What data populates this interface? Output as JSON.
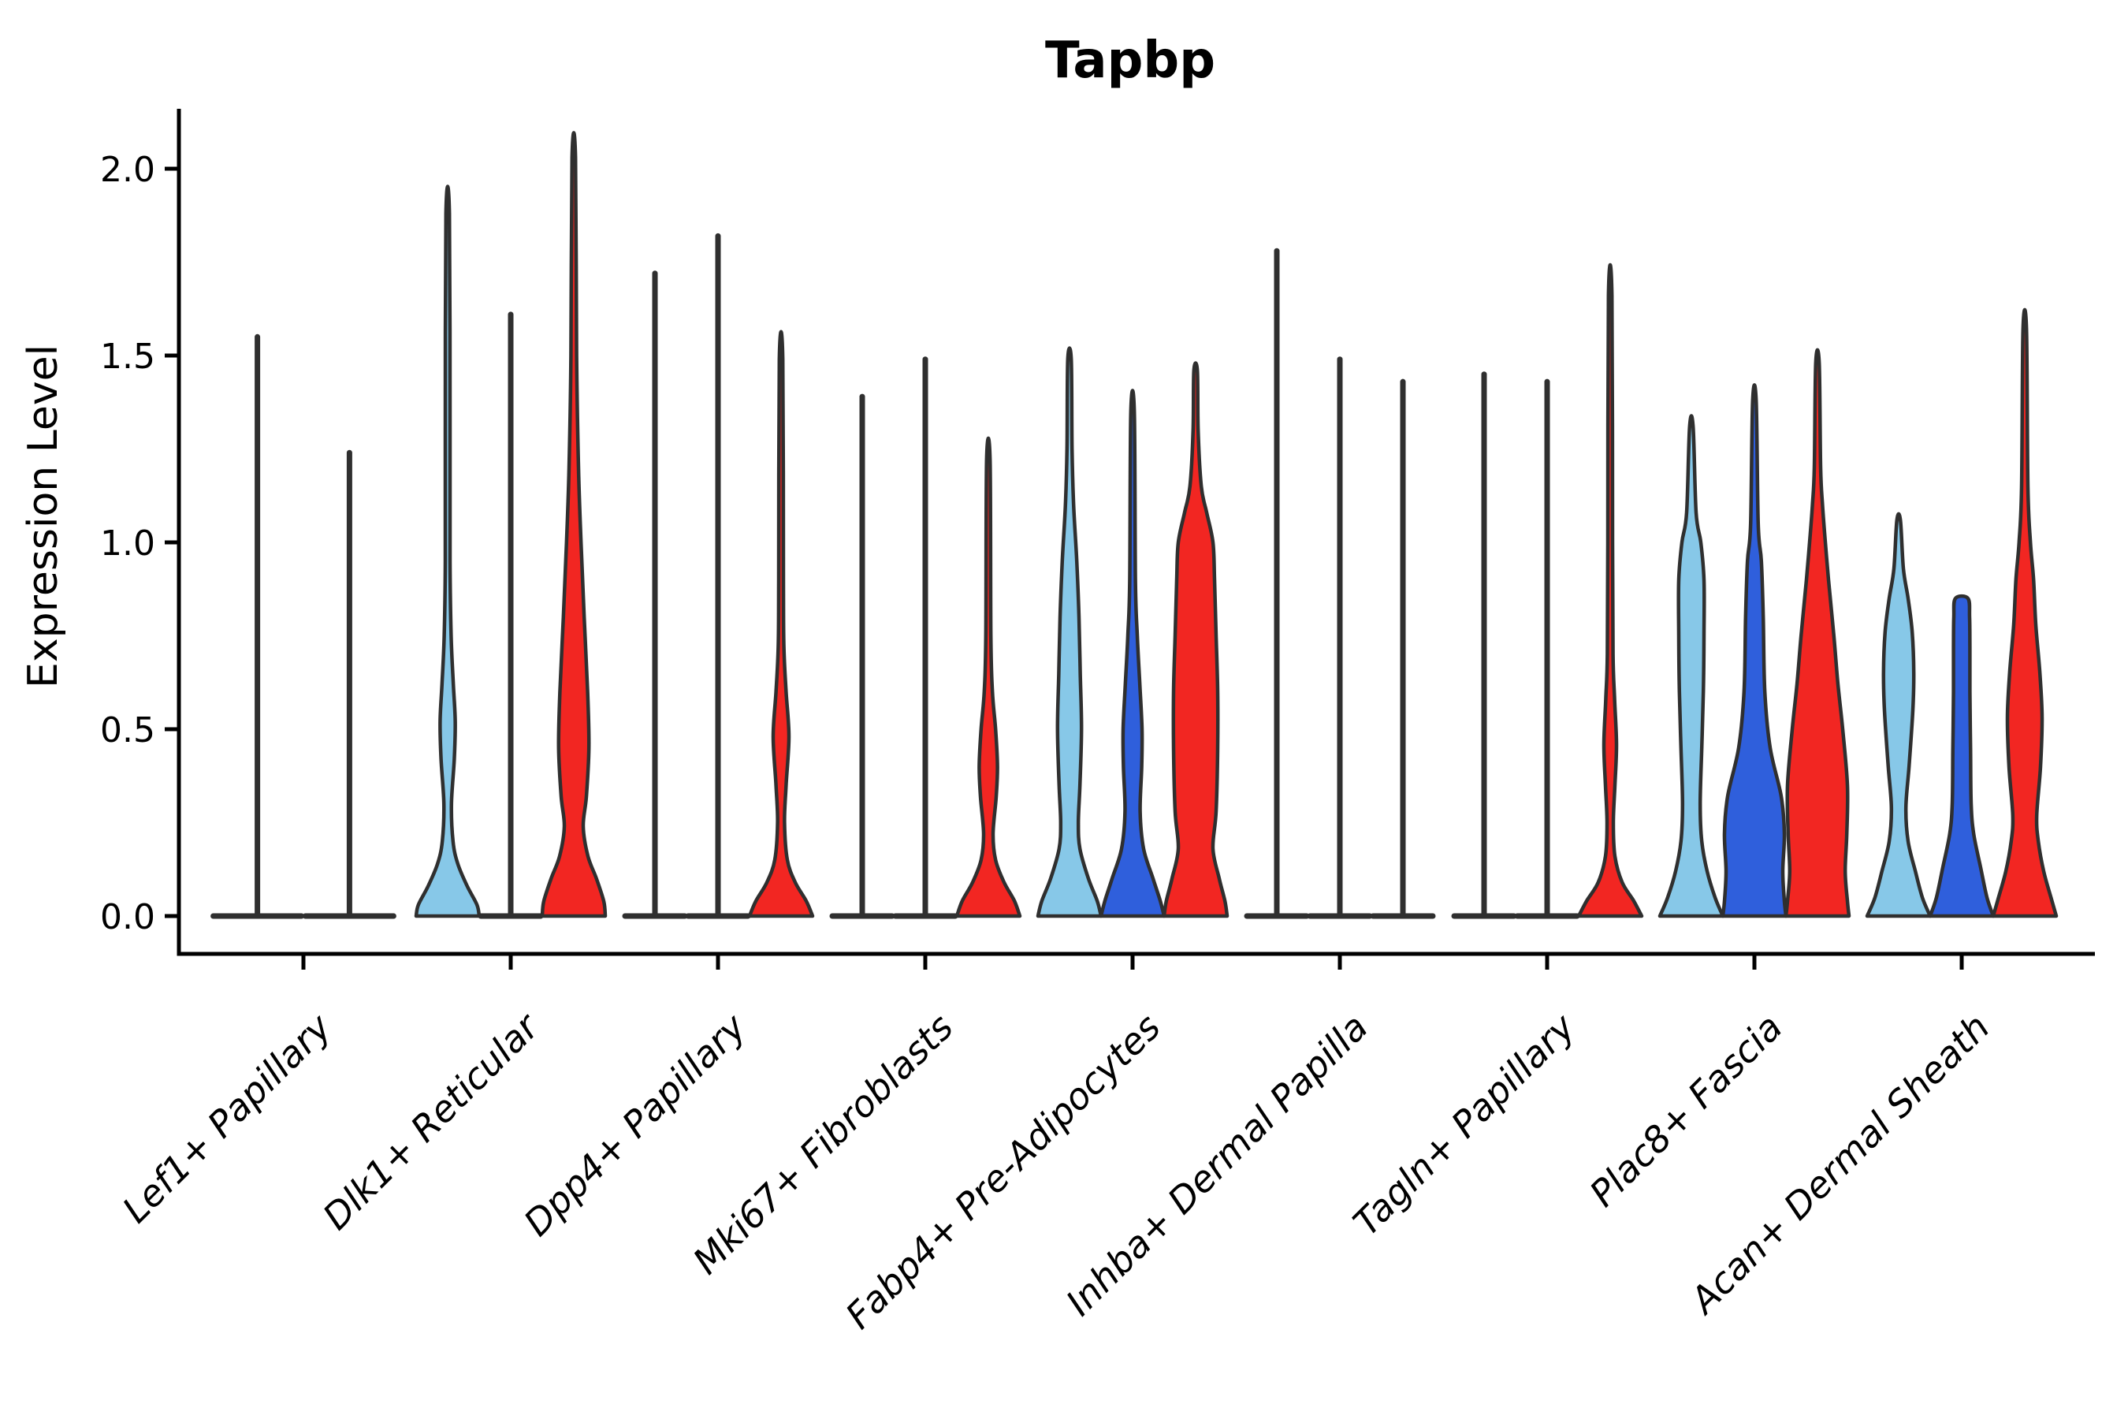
{
  "title": "Tapbp",
  "ylabel": "Expression Level",
  "chart_data": {
    "type": "violin",
    "title": "Tapbp",
    "xlabel": "",
    "ylabel": "Expression Level",
    "ylim": [
      0,
      2.05
    ],
    "ytick_values": [
      0.0,
      0.5,
      1.0,
      1.5,
      2.0
    ],
    "ytick_labels": [
      "0.0",
      "0.5",
      "1.0",
      "1.5",
      "2.0"
    ],
    "grid": false,
    "legend_position": "none",
    "palette": {
      "lightblue": "#87C8E8",
      "blue": "#2F5FDC",
      "red": "#F22622",
      "outline": "#2F2F2F",
      "axis": "#000000"
    },
    "categories": [
      "Lef1+ Papillary",
      "Dlk1+ Reticular",
      "Dpp4+ Papillary",
      "Mki67+ Fibroblasts",
      "Fabp4+ Pre-Adipocytes",
      "Inhba+ Dermal Papilla",
      "Tagln+ Papillary",
      "Plac8+ Fascia",
      "Acan+ Dermal Sheath"
    ],
    "groups": [
      {
        "category": "Lef1+ Papillary",
        "violins": [
          {
            "condition": "lightblue",
            "offset": -0.73,
            "base_halfwidth": 1.45,
            "max": 1.55,
            "profile": null
          },
          {
            "condition": "red",
            "offset": 0.73,
            "base_halfwidth": 1.45,
            "max": 1.24,
            "profile": null
          }
        ]
      },
      {
        "category": "Dlk1+ Reticular",
        "violins": [
          {
            "condition": "lightblue",
            "offset": -1,
            "base_halfwidth": 1,
            "max": 1.88,
            "profile": [
              [
                0,
                1
              ],
              [
                0.03,
                0.93
              ],
              [
                0.08,
                0.62
              ],
              [
                0.14,
                0.32
              ],
              [
                0.2,
                0.17
              ],
              [
                0.3,
                0.12
              ],
              [
                0.42,
                0.21
              ],
              [
                0.52,
                0.24
              ],
              [
                0.62,
                0.18
              ],
              [
                0.75,
                0.11
              ],
              [
                0.95,
                0.075
              ],
              [
                1.3,
                0.075
              ],
              [
                1.88,
                0.055
              ]
            ]
          },
          {
            "condition": "blue",
            "offset": 0,
            "base_halfwidth": 1,
            "max": 1.61,
            "profile": null
          },
          {
            "condition": "red",
            "offset": 1,
            "base_halfwidth": 1,
            "max": 2.03,
            "profile": [
              [
                0,
                1
              ],
              [
                0.04,
                0.95
              ],
              [
                0.1,
                0.72
              ],
              [
                0.16,
                0.45
              ],
              [
                0.24,
                0.3
              ],
              [
                0.32,
                0.4
              ],
              [
                0.45,
                0.48
              ],
              [
                0.6,
                0.44
              ],
              [
                0.8,
                0.33
              ],
              [
                1.0,
                0.23
              ],
              [
                1.2,
                0.15
              ],
              [
                1.5,
                0.09
              ],
              [
                2.03,
                0.055
              ]
            ]
          }
        ]
      },
      {
        "category": "Dpp4+ Papillary",
        "violins": [
          {
            "condition": "lightblue",
            "offset": -1,
            "base_halfwidth": 1,
            "max": 1.72,
            "profile": null
          },
          {
            "condition": "blue",
            "offset": 0,
            "base_halfwidth": 1,
            "max": 1.82,
            "profile": null
          },
          {
            "condition": "red",
            "offset": 1,
            "base_halfwidth": 1,
            "max": 1.49,
            "profile": [
              [
                0,
                1
              ],
              [
                0.04,
                0.8
              ],
              [
                0.09,
                0.45
              ],
              [
                0.15,
                0.2
              ],
              [
                0.25,
                0.11
              ],
              [
                0.35,
                0.16
              ],
              [
                0.48,
                0.25
              ],
              [
                0.6,
                0.16
              ],
              [
                0.72,
                0.09
              ],
              [
                0.9,
                0.075
              ],
              [
                1.49,
                0.055
              ]
            ]
          }
        ]
      },
      {
        "category": "Mki67+ Fibroblasts",
        "violins": [
          {
            "condition": "lightblue",
            "offset": -1,
            "base_halfwidth": 1,
            "max": 1.39,
            "profile": null
          },
          {
            "condition": "blue",
            "offset": 0,
            "base_halfwidth": 1,
            "max": 1.49,
            "profile": null
          },
          {
            "condition": "red",
            "offset": 1,
            "base_halfwidth": 1,
            "max": 1.22,
            "profile": [
              [
                0,
                1
              ],
              [
                0.04,
                0.83
              ],
              [
                0.09,
                0.5
              ],
              [
                0.15,
                0.23
              ],
              [
                0.22,
                0.15
              ],
              [
                0.32,
                0.25
              ],
              [
                0.4,
                0.29
              ],
              [
                0.5,
                0.23
              ],
              [
                0.6,
                0.13
              ],
              [
                0.75,
                0.08
              ],
              [
                1.22,
                0.055
              ]
            ]
          }
        ]
      },
      {
        "category": "Fabp4+ Pre-Adipocytes",
        "violins": [
          {
            "condition": "lightblue",
            "offset": -1,
            "base_halfwidth": 1,
            "max": 1.49,
            "profile": [
              [
                0,
                1
              ],
              [
                0.04,
                0.88
              ],
              [
                0.1,
                0.6
              ],
              [
                0.18,
                0.33
              ],
              [
                0.25,
                0.28
              ],
              [
                0.35,
                0.33
              ],
              [
                0.5,
                0.38
              ],
              [
                0.65,
                0.34
              ],
              [
                0.8,
                0.3
              ],
              [
                0.95,
                0.23
              ],
              [
                1.1,
                0.13
              ],
              [
                1.25,
                0.08
              ],
              [
                1.49,
                0.055
              ]
            ]
          },
          {
            "condition": "blue",
            "offset": 0,
            "base_halfwidth": 1,
            "max": 1.35,
            "profile": [
              [
                0,
                1
              ],
              [
                0.04,
                0.88
              ],
              [
                0.1,
                0.65
              ],
              [
                0.18,
                0.35
              ],
              [
                0.28,
                0.24
              ],
              [
                0.4,
                0.29
              ],
              [
                0.5,
                0.3
              ],
              [
                0.62,
                0.23
              ],
              [
                0.75,
                0.15
              ],
              [
                0.9,
                0.09
              ],
              [
                1.35,
                0.055
              ]
            ]
          },
          {
            "condition": "red",
            "offset": 1,
            "base_halfwidth": 1,
            "max": 1.46,
            "profile": [
              [
                0,
                1
              ],
              [
                0.04,
                0.93
              ],
              [
                0.1,
                0.75
              ],
              [
                0.18,
                0.55
              ],
              [
                0.28,
                0.65
              ],
              [
                0.45,
                0.7
              ],
              [
                0.6,
                0.7
              ],
              [
                0.75,
                0.65
              ],
              [
                0.9,
                0.6
              ],
              [
                1.0,
                0.55
              ],
              [
                1.08,
                0.35
              ],
              [
                1.15,
                0.18
              ],
              [
                1.3,
                0.08
              ],
              [
                1.46,
                0.055
              ]
            ]
          }
        ]
      },
      {
        "category": "Inhba+ Dermal Papilla",
        "violins": [
          {
            "condition": "lightblue",
            "offset": -1,
            "base_halfwidth": 1,
            "max": 1.78,
            "profile": null
          },
          {
            "condition": "blue",
            "offset": 0,
            "base_halfwidth": 1,
            "max": 1.49,
            "profile": null
          },
          {
            "condition": "red",
            "offset": 1,
            "base_halfwidth": 1,
            "max": 1.43,
            "profile": null
          }
        ]
      },
      {
        "category": "Tagln+ Papillary",
        "violins": [
          {
            "condition": "lightblue",
            "offset": -1,
            "base_halfwidth": 1,
            "max": 1.45,
            "profile": null
          },
          {
            "condition": "blue",
            "offset": 0,
            "base_halfwidth": 1,
            "max": 1.43,
            "profile": null
          },
          {
            "condition": "red",
            "offset": 1,
            "base_halfwidth": 1,
            "max": 1.66,
            "profile": [
              [
                0,
                1
              ],
              [
                0.04,
                0.75
              ],
              [
                0.09,
                0.38
              ],
              [
                0.16,
                0.15
              ],
              [
                0.25,
                0.1
              ],
              [
                0.35,
                0.15
              ],
              [
                0.46,
                0.2
              ],
              [
                0.58,
                0.14
              ],
              [
                0.7,
                0.09
              ],
              [
                1.0,
                0.075
              ],
              [
                1.66,
                0.055
              ]
            ]
          }
        ]
      },
      {
        "category": "Plac8+ Fascia",
        "violins": [
          {
            "condition": "lightblue",
            "offset": -1,
            "base_halfwidth": 1,
            "max": 1.31,
            "profile": [
              [
                0,
                1
              ],
              [
                0.05,
                0.75
              ],
              [
                0.12,
                0.5
              ],
              [
                0.2,
                0.33
              ],
              [
                0.3,
                0.28
              ],
              [
                0.45,
                0.33
              ],
              [
                0.6,
                0.38
              ],
              [
                0.75,
                0.4
              ],
              [
                0.9,
                0.4
              ],
              [
                1.0,
                0.3
              ],
              [
                1.08,
                0.15
              ],
              [
                1.31,
                0.055
              ]
            ]
          },
          {
            "condition": "blue",
            "offset": 0,
            "base_halfwidth": 1,
            "max": 1.38,
            "profile": [
              [
                0,
                1
              ],
              [
                0.04,
                0.95
              ],
              [
                0.12,
                0.9
              ],
              [
                0.22,
                0.95
              ],
              [
                0.32,
                0.85
              ],
              [
                0.45,
                0.5
              ],
              [
                0.6,
                0.33
              ],
              [
                0.8,
                0.28
              ],
              [
                0.95,
                0.22
              ],
              [
                1.05,
                0.12
              ],
              [
                1.38,
                0.055
              ]
            ]
          },
          {
            "condition": "red",
            "offset": 1,
            "base_halfwidth": 1,
            "max": 1.48,
            "profile": [
              [
                0,
                1
              ],
              [
                0.04,
                0.95
              ],
              [
                0.12,
                0.88
              ],
              [
                0.22,
                0.93
              ],
              [
                0.35,
                0.95
              ],
              [
                0.5,
                0.8
              ],
              [
                0.62,
                0.65
              ],
              [
                0.75,
                0.52
              ],
              [
                0.9,
                0.35
              ],
              [
                1.0,
                0.25
              ],
              [
                1.1,
                0.16
              ],
              [
                1.2,
                0.1
              ],
              [
                1.48,
                0.055
              ]
            ]
          }
        ]
      },
      {
        "category": "Acan+ Dermal Sheath",
        "violins": [
          {
            "condition": "lightblue",
            "offset": -1,
            "base_halfwidth": 1,
            "max": 1.06,
            "profile": [
              [
                0,
                1
              ],
              [
                0.05,
                0.75
              ],
              [
                0.12,
                0.53
              ],
              [
                0.2,
                0.3
              ],
              [
                0.29,
                0.23
              ],
              [
                0.4,
                0.33
              ],
              [
                0.55,
                0.45
              ],
              [
                0.65,
                0.48
              ],
              [
                0.76,
                0.43
              ],
              [
                0.85,
                0.3
              ],
              [
                0.93,
                0.15
              ],
              [
                1.06,
                0.055
              ]
            ]
          },
          {
            "condition": "blue",
            "offset": 0,
            "base_halfwidth": 1,
            "max": 0.85,
            "profile": [
              [
                0,
                1
              ],
              [
                0.05,
                0.8
              ],
              [
                0.13,
                0.6
              ],
              [
                0.22,
                0.38
              ],
              [
                0.3,
                0.3
              ],
              [
                0.45,
                0.28
              ],
              [
                0.6,
                0.26
              ],
              [
                0.72,
                0.26
              ],
              [
                0.8,
                0.25
              ],
              [
                0.85,
                0.2
              ]
            ]
          },
          {
            "condition": "red",
            "offset": 1,
            "base_halfwidth": 1,
            "max": 1.57,
            "profile": [
              [
                0,
                1
              ],
              [
                0.05,
                0.83
              ],
              [
                0.12,
                0.6
              ],
              [
                0.2,
                0.43
              ],
              [
                0.27,
                0.38
              ],
              [
                0.4,
                0.5
              ],
              [
                0.53,
                0.55
              ],
              [
                0.65,
                0.48
              ],
              [
                0.78,
                0.35
              ],
              [
                0.9,
                0.28
              ],
              [
                1.0,
                0.18
              ],
              [
                1.15,
                0.1
              ],
              [
                1.57,
                0.055
              ]
            ]
          }
        ]
      }
    ]
  }
}
